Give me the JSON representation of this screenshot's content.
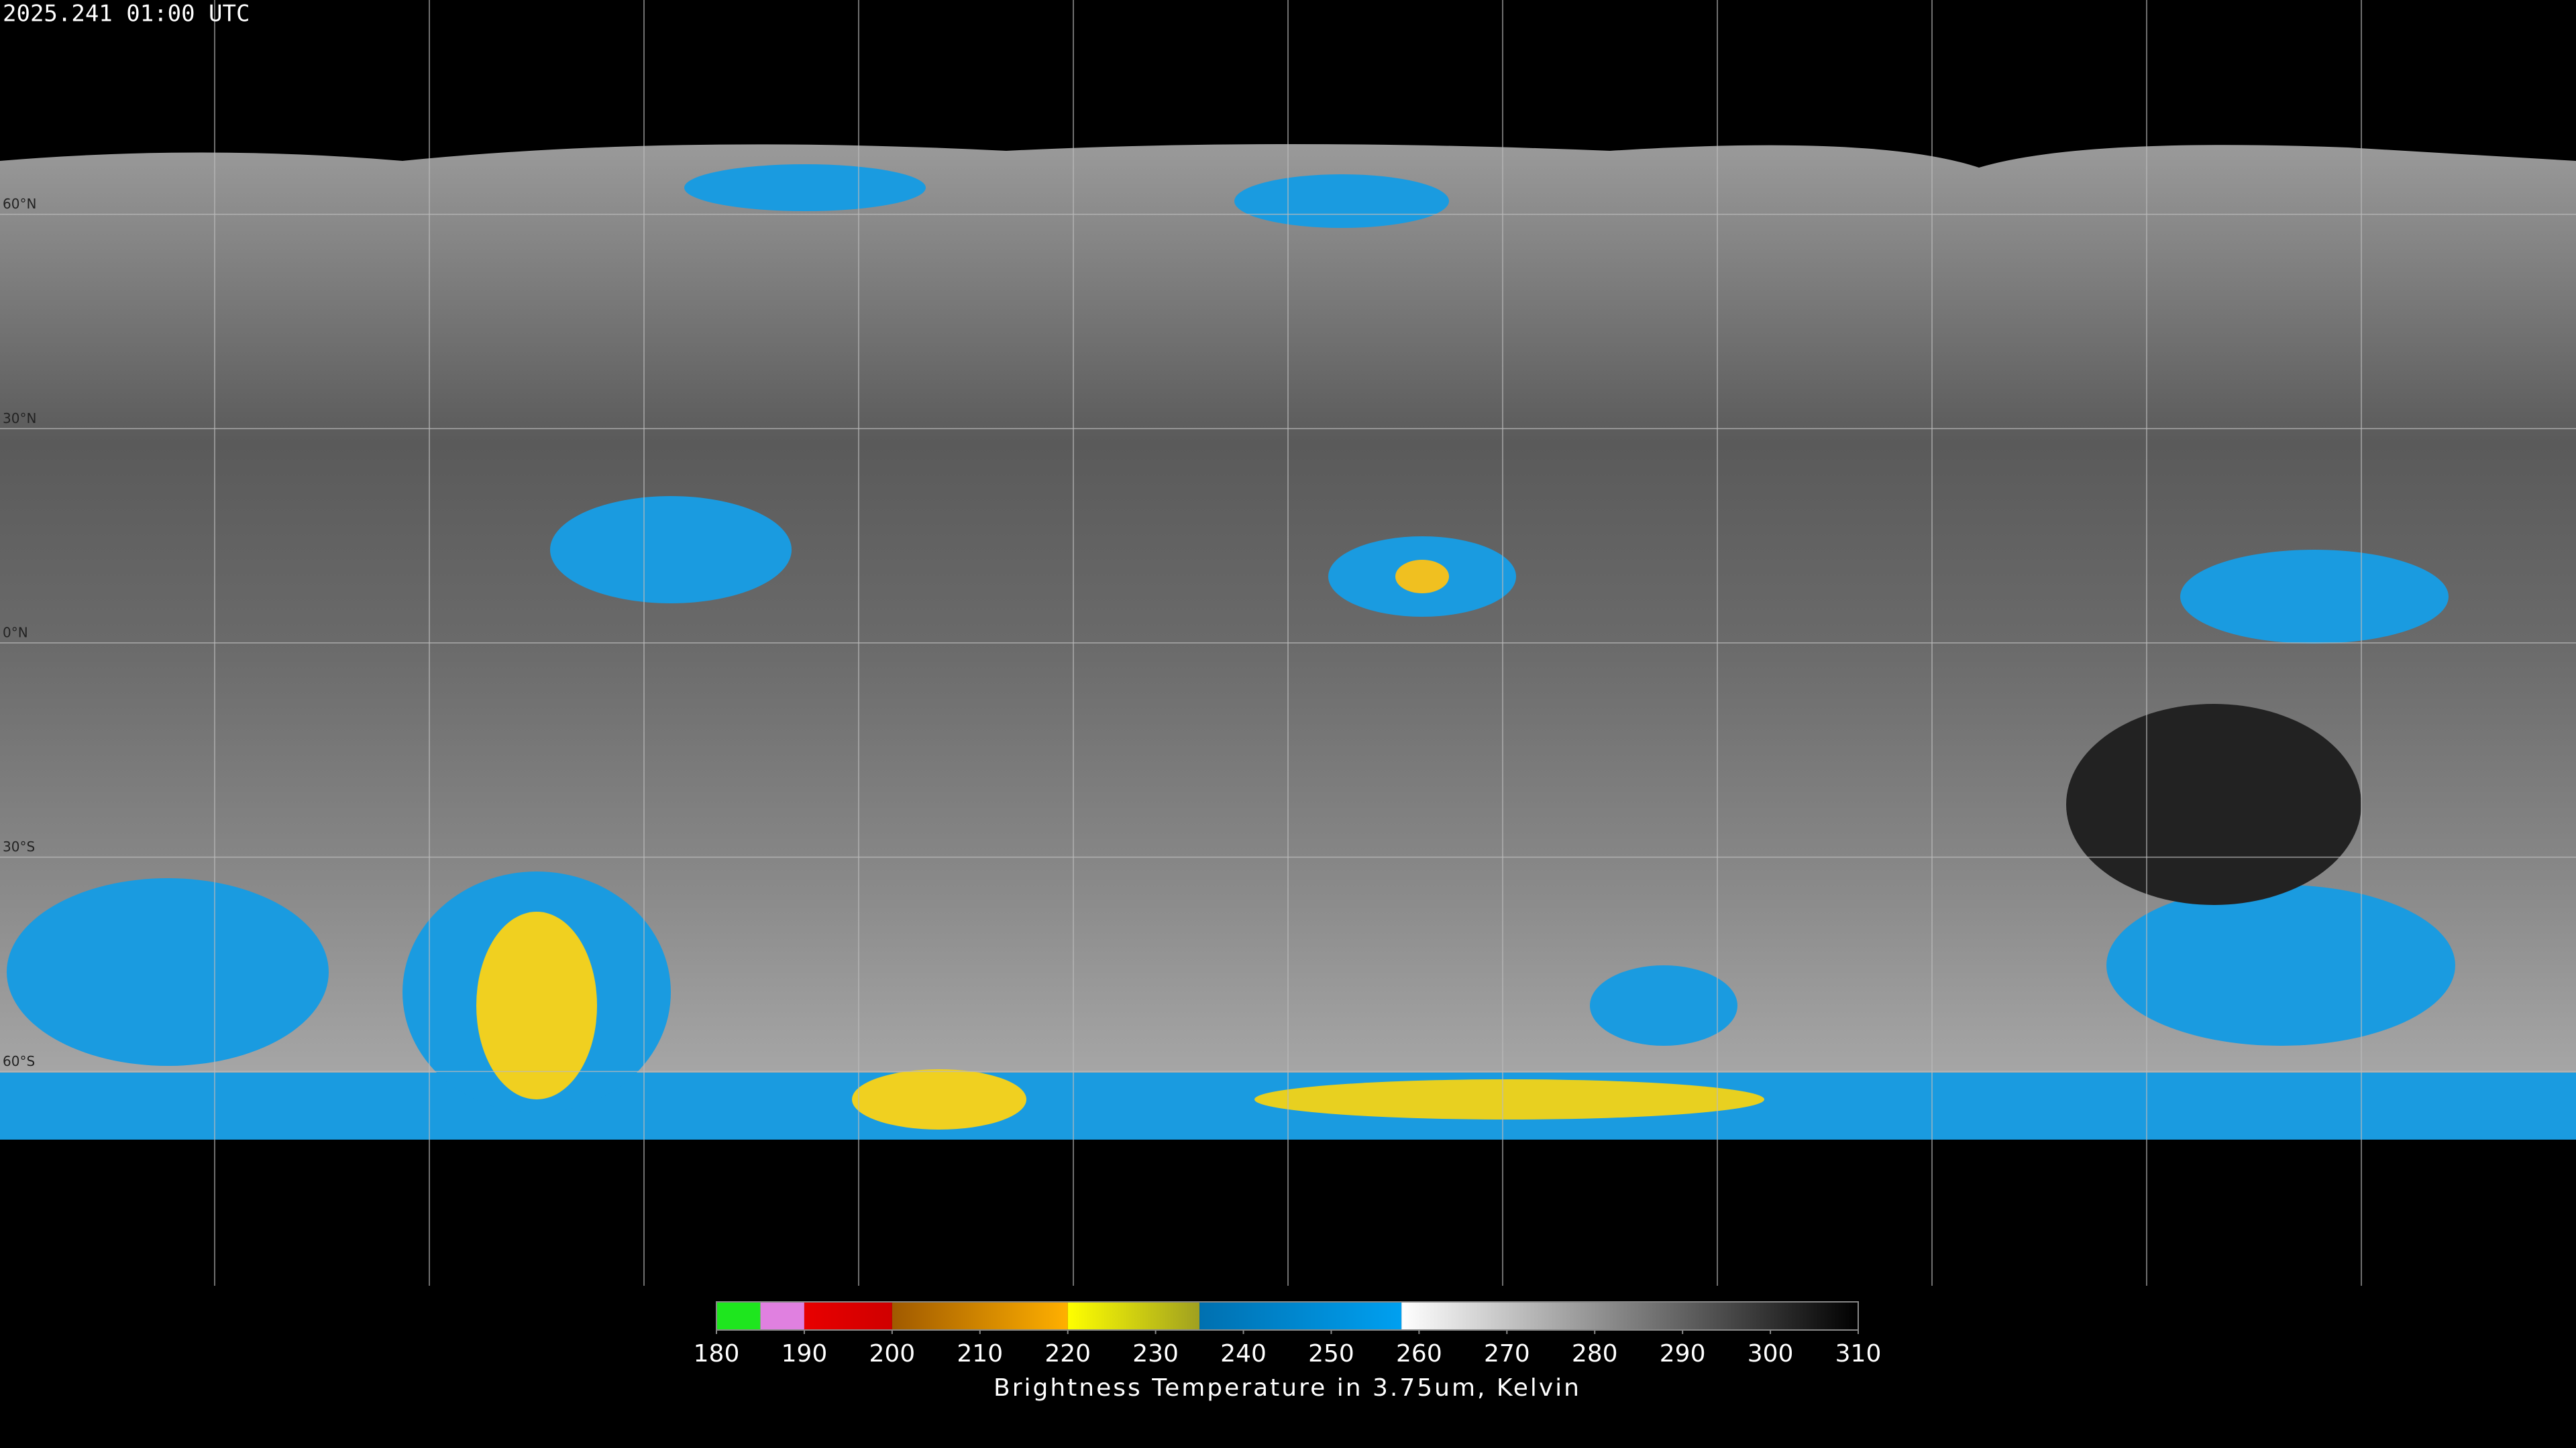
{
  "header": {
    "timestamp": "2025.241 01:00 UTC"
  },
  "map": {
    "lat_labels": [
      "60°N",
      "30°N",
      "0°N",
      "30°S",
      "60°S"
    ]
  },
  "colorbar": {
    "range": [
      180,
      310
    ],
    "ticks": [
      180,
      190,
      200,
      210,
      220,
      230,
      240,
      250,
      260,
      270,
      280,
      290,
      300,
      310
    ],
    "segments": [
      {
        "from": 180,
        "to": 185,
        "color": "#1ee61e",
        "color_end": "#1ee61e"
      },
      {
        "from": 185,
        "to": 190,
        "color": "#e080e0",
        "color_end": "#e080e0"
      },
      {
        "from": 190,
        "to": 200,
        "color": "#e80000",
        "color_end": "#d00000"
      },
      {
        "from": 200,
        "to": 220,
        "color": "#a05a00",
        "color_end": "#ffb000"
      },
      {
        "from": 220,
        "to": 235,
        "color": "#ffff00",
        "color_end": "#a0a020"
      },
      {
        "from": 235,
        "to": 258,
        "color": "#0070b0",
        "color_end": "#00a0f0"
      },
      {
        "from": 258,
        "to": 310,
        "color": "#ffffff",
        "color_end": "#000000"
      }
    ],
    "label": "Brightness Temperature in 3.75um, Kelvin"
  }
}
